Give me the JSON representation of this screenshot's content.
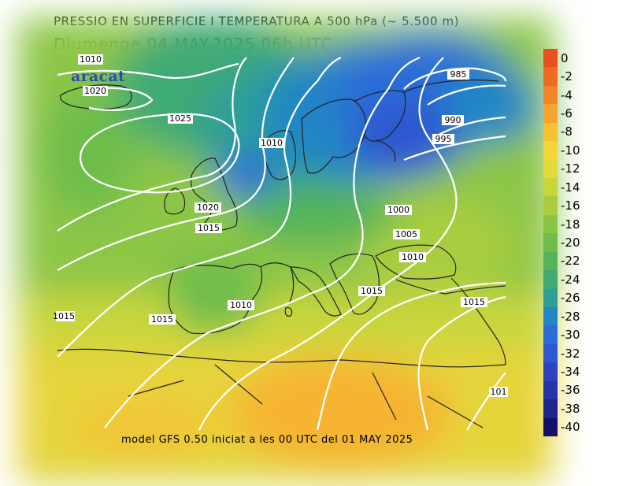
{
  "header": {
    "title": "PRESSIO EN SUPERFICIE I TEMPERATURA A 500 hPa (~ 5.500 m)",
    "subtitle": "Diumenge  04.MAY.2025 06h UTC"
  },
  "logo": {
    "text": "aracat"
  },
  "footer": {
    "text": "model GFS 0.50 iniciat a les 00 UTC del 01 MAY 2025"
  },
  "colorbar": {
    "labels": [
      "0",
      "-2",
      "-4",
      "-6",
      "-8",
      "-10",
      "-12",
      "-14",
      "-16",
      "-18",
      "-20",
      "-22",
      "-24",
      "-26",
      "-28",
      "-30",
      "-32",
      "-34",
      "-36",
      "-38",
      "-40"
    ],
    "colors": [
      "#e8511c",
      "#ef6a22",
      "#f38628",
      "#f6a52f",
      "#f8c134",
      "#f5d63a",
      "#e3da3b",
      "#c9d53d",
      "#a9cd3f",
      "#88c643",
      "#6ebd4c",
      "#55b45a",
      "#3faa74",
      "#2e9f96",
      "#2386c5",
      "#2a6ed8",
      "#2f58d0",
      "#2c45bd",
      "#2534a6",
      "#1d268f",
      "#150f6c"
    ]
  },
  "isobars": [
    "1010",
    "1020",
    "1025",
    "1010",
    "985",
    "990",
    "995",
    "1000",
    "1005",
    "1010",
    "1015",
    "1020",
    "1015",
    "1010",
    "1015",
    "1015",
    "1015",
    "101"
  ]
}
